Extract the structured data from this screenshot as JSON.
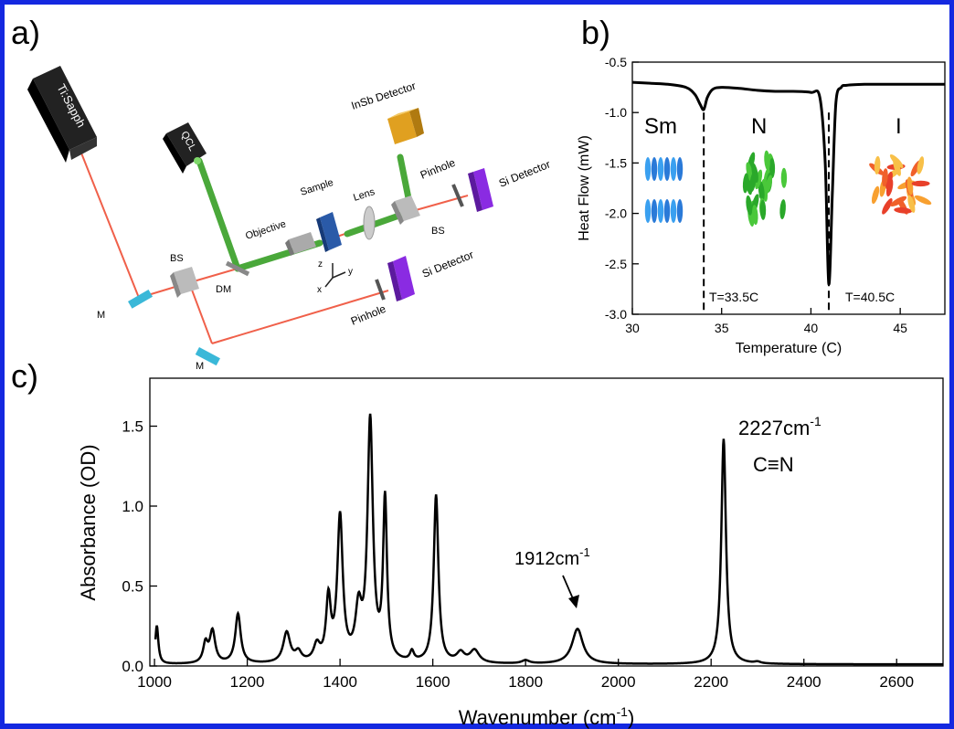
{
  "panel_labels": {
    "a": "a)",
    "b": "b)",
    "c": "c)"
  },
  "colors": {
    "frame": "#1428e0",
    "laser": "#f0604a",
    "qcl_beam": "#4aa83a",
    "mirror": "#3ab8d8",
    "detector_si": "#8a2be2",
    "detector_insb": "#e0a020",
    "sample": "#2a5aa8"
  },
  "setup": {
    "tisapph": "Ti:Sapph",
    "qcl": "QCL",
    "insb": "InSb Detector",
    "si_detector_top": "Si Detector",
    "si_detector_bottom": "Si Detector",
    "pinhole_top": "Pinhole",
    "pinhole_bottom": "Pinhole",
    "objective": "Objective",
    "sample": "Sample",
    "lens": "Lens",
    "bs_left": "BS",
    "bs_right": "BS",
    "dm": "DM",
    "m_top": "M",
    "m_bottom": "M",
    "axis_x": "x",
    "axis_y": "y",
    "axis_z": "z"
  },
  "chart_data": [
    {
      "type": "line",
      "panel": "b",
      "xlabel": "Temperature (C)",
      "ylabel": "Heat Flow (mW)",
      "xlim": [
        30,
        47.5
      ],
      "ylim": [
        -3.0,
        -0.5
      ],
      "xticks": [
        30,
        35,
        40,
        45
      ],
      "yticks": [
        -0.5,
        -1.0,
        -1.5,
        -2.0,
        -2.5,
        -3.0
      ],
      "xtick_labels": [
        "30",
        "35",
        "40",
        "45"
      ],
      "ytick_labels": [
        "-0.5",
        "-1.0",
        "-1.5",
        "-2.0",
        "-2.5",
        "-3.0"
      ],
      "x": [
        30,
        31,
        32,
        33,
        33.5,
        33.8,
        34.0,
        34.2,
        34.5,
        35,
        36,
        37,
        38,
        39,
        40,
        40.5,
        40.8,
        41.0,
        41.2,
        41.4,
        41.7,
        42,
        43,
        44,
        45,
        46,
        47.5
      ],
      "y": [
        -0.7,
        -0.71,
        -0.72,
        -0.75,
        -0.82,
        -0.92,
        -0.97,
        -0.85,
        -0.77,
        -0.75,
        -0.76,
        -0.78,
        -0.79,
        -0.79,
        -0.8,
        -0.85,
        -1.5,
        -2.7,
        -1.8,
        -0.9,
        -0.75,
        -0.73,
        -0.72,
        -0.72,
        -0.72,
        -0.72,
        -0.72
      ],
      "phase_labels": [
        "Sm",
        "N",
        "I"
      ],
      "transition_labels": [
        "T=33.5C",
        "T=40.5C"
      ],
      "transitions": [
        34.0,
        41.0
      ],
      "grid": false
    },
    {
      "type": "line",
      "panel": "c",
      "xlabel": "Wavenumber (cm",
      "xlabel_sup": "-1",
      "xlabel_end": ")",
      "ylabel": "Absorbance (OD)",
      "xlim": [
        990,
        2700
      ],
      "ylim": [
        0,
        1.8
      ],
      "xticks": [
        1000,
        1200,
        1400,
        1600,
        1800,
        2000,
        2200,
        2400,
        2600
      ],
      "yticks": [
        0.0,
        0.5,
        1.0,
        1.5
      ],
      "xtick_labels": [
        "1000",
        "1200",
        "1400",
        "1600",
        "1800",
        "2000",
        "2200",
        "2400",
        "2600"
      ],
      "ytick_labels": [
        "0.0",
        "0.5",
        "1.0",
        "1.5"
      ],
      "baseline": 0.01,
      "peaks": [
        {
          "x": 1005,
          "h": 0.24,
          "w": 4
        },
        {
          "x": 1110,
          "h": 0.12,
          "w": 6
        },
        {
          "x": 1125,
          "h": 0.2,
          "w": 7
        },
        {
          "x": 1180,
          "h": 0.31,
          "w": 7
        },
        {
          "x": 1285,
          "h": 0.19,
          "w": 9
        },
        {
          "x": 1310,
          "h": 0.06,
          "w": 8
        },
        {
          "x": 1350,
          "h": 0.1,
          "w": 8
        },
        {
          "x": 1375,
          "h": 0.38,
          "w": 6
        },
        {
          "x": 1400,
          "h": 0.9,
          "w": 7
        },
        {
          "x": 1440,
          "h": 0.3,
          "w": 8
        },
        {
          "x": 1465,
          "h": 1.5,
          "w": 7
        },
        {
          "x": 1497,
          "h": 1.0,
          "w": 5
        },
        {
          "x": 1555,
          "h": 0.06,
          "w": 5
        },
        {
          "x": 1607,
          "h": 1.05,
          "w": 6
        },
        {
          "x": 1660,
          "h": 0.06,
          "w": 10
        },
        {
          "x": 1690,
          "h": 0.08,
          "w": 12
        },
        {
          "x": 1800,
          "h": 0.02,
          "w": 10
        },
        {
          "x": 1912,
          "h": 0.22,
          "w": 14
        },
        {
          "x": 2227,
          "h": 1.41,
          "w": 6
        },
        {
          "x": 2300,
          "h": 0.01,
          "w": 8
        }
      ],
      "annotations": [
        {
          "text": "1912cm",
          "sup": "-1",
          "x": 1912
        },
        {
          "text": "2227cm",
          "sup": "-1",
          "x": 2227
        },
        {
          "text": "C≡N",
          "x": 2227
        }
      ],
      "grid": false
    }
  ]
}
